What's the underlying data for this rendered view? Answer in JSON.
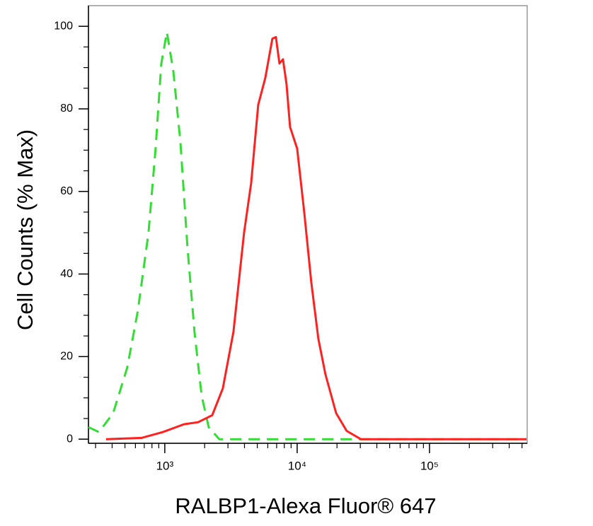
{
  "chart_data": {
    "type": "line",
    "xlabel": "RALBP1-Alexa Fluor® 647",
    "ylabel": "Cell Counts (% Max)",
    "xscale": "log",
    "xlim": [
      265,
      547000
    ],
    "ylim": [
      -1,
      105
    ],
    "xticks": [
      {
        "value": 1000,
        "label": "10³"
      },
      {
        "value": 10000,
        "label": "10⁴"
      },
      {
        "value": 100000,
        "label": "10⁵"
      }
    ],
    "xminorticks": [
      300,
      400,
      500,
      600,
      700,
      800,
      900,
      2000,
      3000,
      4000,
      5000,
      6000,
      7000,
      8000,
      9000,
      20000,
      30000,
      40000,
      50000,
      60000,
      70000,
      80000,
      90000,
      200000,
      300000,
      400000,
      500000
    ],
    "yticks": [
      0,
      20,
      40,
      60,
      80,
      100
    ],
    "yminorticks": [
      5,
      10,
      15,
      25,
      30,
      35,
      45,
      50,
      55,
      65,
      70,
      75,
      85,
      90,
      95
    ],
    "series": [
      {
        "color": "#33dd33",
        "dashed": true,
        "x": [
          265,
          318,
          407,
          521,
          626,
          753,
          852,
          940,
          1037,
          1159,
          1311,
          1483,
          1677,
          1897,
          2146,
          2581,
          7816,
          540000
        ],
        "values": [
          2.9,
          1.7,
          6.3,
          17.4,
          31.1,
          49.9,
          70.4,
          90.9,
          98.6,
          89.2,
          72.1,
          46.5,
          25.9,
          10.6,
          2.9,
          0,
          0,
          0
        ]
      },
      {
        "color": "#ff2020",
        "dashed": false,
        "x": [
          360,
          666,
          964,
          1395,
          1783,
          2282,
          2744,
          3302,
          3972,
          4492,
          5080,
          5746,
          6500,
          6912,
          7350,
          7816,
          8313,
          8840,
          10000,
          11311,
          12794,
          14470,
          16365,
          19690,
          23680,
          30290,
          540000
        ],
        "values": [
          0,
          0.3,
          1.7,
          3.6,
          4.1,
          5.8,
          12.3,
          26,
          50,
          62,
          81,
          87.5,
          97,
          97.4,
          91,
          92,
          86,
          75.6,
          70.4,
          55,
          38,
          24.3,
          15.7,
          6.3,
          2,
          0,
          0
        ]
      }
    ]
  }
}
